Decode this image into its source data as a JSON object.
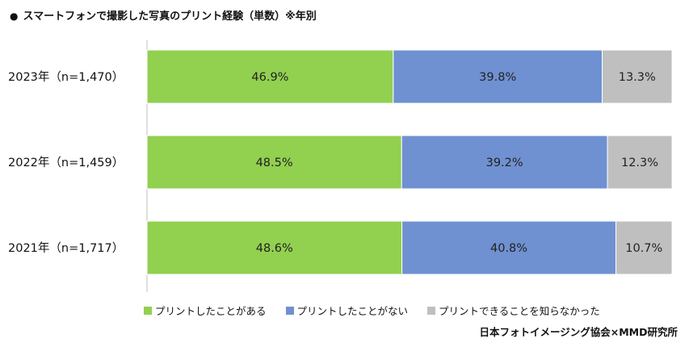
{
  "title": "スマートフォンで撮影した写真のプリント経験（単数）※年別",
  "source": "日本フォトイメージング協会×MMD研究所",
  "colors": {
    "series1": "#92D050",
    "series2": "#6F91D1",
    "series3": "#BFBFBF",
    "axis": "#BFBFBF"
  },
  "chart_data": {
    "type": "bar",
    "orientation": "horizontal",
    "stacked": "100%",
    "title": "スマートフォンで撮影した写真のプリント経験（単数）※年別",
    "categories": [
      "2023年（n=1,470）",
      "2022年（n=1,459）",
      "2021年（n=1,717）"
    ],
    "series": [
      {
        "name": "プリントしたことがある",
        "values": [
          46.9,
          48.5,
          48.6
        ],
        "labels": [
          "46.9%",
          "48.5%",
          "48.6%"
        ]
      },
      {
        "name": "プリントしたことがない",
        "values": [
          39.8,
          39.2,
          40.8
        ],
        "labels": [
          "39.8%",
          "39.2%",
          "40.8%"
        ]
      },
      {
        "name": "プリントできることを知らなかった",
        "values": [
          13.3,
          12.3,
          10.7
        ],
        "labels": [
          "13.3%",
          "12.3%",
          "10.7%"
        ]
      }
    ],
    "xlim": [
      0,
      100
    ],
    "legend_position": "bottom",
    "grid": false
  }
}
